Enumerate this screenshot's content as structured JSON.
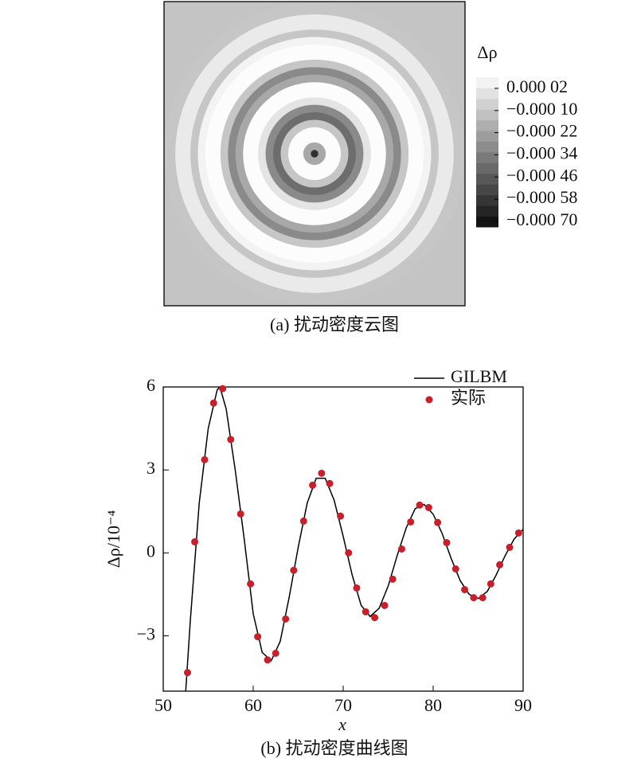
{
  "chart_data": [
    {
      "type": "heatmap",
      "title": "(a) 扰动密度云图",
      "colorbar_label": "Δρ",
      "r": [
        0,
        2,
        4,
        6,
        8,
        10,
        12,
        14,
        16,
        18,
        20,
        22,
        24,
        26,
        28,
        30,
        32,
        34,
        36,
        38,
        40
      ],
      "values": [
        -0.0007,
        -0.0006,
        -0.0002,
        0.0003,
        0.0002,
        -0.0001,
        -0.0004,
        -0.0003,
        0.0,
        0.0002,
        0.0001,
        -0.0002,
        -0.0003,
        -0.0001,
        0.0001,
        0.0001,
        5e-05,
        -0.0001,
        2e-05,
        2e-05,
        -0.0001
      ],
      "clim": [
        -0.00073,
        8e-05
      ],
      "cticks": [
        {
          "value": 2e-05,
          "label": "0.000 02"
        },
        {
          "value": -0.0001,
          "label": "−0.000 10"
        },
        {
          "value": -0.00022,
          "label": "−0.000 22"
        },
        {
          "value": -0.00034,
          "label": "−0.000 34"
        },
        {
          "value": -0.00046,
          "label": "−0.000 46"
        },
        {
          "value": -0.00058,
          "label": "−0.000 58"
        },
        {
          "value": -0.0007,
          "label": "−0.000 70"
        }
      ]
    },
    {
      "type": "line",
      "title": "(b) 扰动密度曲线图",
      "xlabel": "x",
      "ylabel": "Δρ/10⁻⁴",
      "xlim": [
        50,
        90
      ],
      "xticks": [
        50,
        60,
        70,
        80,
        90
      ],
      "ylim": [
        -5,
        6
      ],
      "yticks": [
        6,
        3,
        0,
        {
          "value": -3,
          "label": "−3"
        }
      ],
      "legend": "upper right",
      "series": [
        {
          "name": "GILBM",
          "color": "#000000",
          "style": "line",
          "x": [
            52.5,
            53,
            54,
            55,
            56,
            56.3,
            57,
            58,
            59,
            60,
            61,
            62,
            63,
            64,
            65,
            66,
            67,
            68,
            69,
            70,
            71,
            72,
            73,
            74,
            75,
            76,
            77,
            78,
            79,
            80,
            81,
            82,
            83,
            84,
            85,
            86,
            87,
            88,
            89,
            90
          ],
          "values": [
            -5.0,
            -2.5,
            1.8,
            4.5,
            5.9,
            6.0,
            5.2,
            3.0,
            0.5,
            -2.2,
            -3.6,
            -3.9,
            -3.2,
            -1.6,
            0.2,
            1.8,
            2.7,
            2.7,
            1.9,
            0.6,
            -0.8,
            -1.9,
            -2.3,
            -2.0,
            -1.2,
            -0.1,
            0.9,
            1.6,
            1.75,
            1.4,
            0.7,
            -0.2,
            -1.0,
            -1.5,
            -1.65,
            -1.4,
            -0.8,
            -0.1,
            0.5,
            0.85
          ]
        },
        {
          "name": "实际",
          "color": "#c8202a",
          "style": "marker",
          "x": [
            52.7,
            53.5,
            54.6,
            55.6,
            56.6,
            57.5,
            58.6,
            59.7,
            60.5,
            61.6,
            62.5,
            63.6,
            64.5,
            65.6,
            66.6,
            67.6,
            68.5,
            69.7,
            70.6,
            71.5,
            72.5,
            73.5,
            74.6,
            75.5,
            76.5,
            77.5,
            78.5,
            79.5,
            80.5,
            81.5,
            82.5,
            83.5,
            84.5,
            85.5,
            86.4,
            87.4,
            88.5,
            89.5
          ],
          "values": [
            -4.33,
            0.4,
            3.37,
            5.42,
            5.94,
            4.1,
            1.41,
            -1.12,
            -3.03,
            -3.87,
            -3.63,
            -2.39,
            -0.63,
            1.15,
            2.45,
            2.88,
            2.51,
            1.33,
            0,
            -1.27,
            -2.13,
            -2.34,
            -1.9,
            -0.95,
            0.14,
            1.12,
            1.73,
            1.64,
            1.1,
            0.37,
            -0.58,
            -1.33,
            -1.62,
            -1.62,
            -1.12,
            -0.43,
            0.2,
            0.72
          ]
        }
      ]
    }
  ]
}
